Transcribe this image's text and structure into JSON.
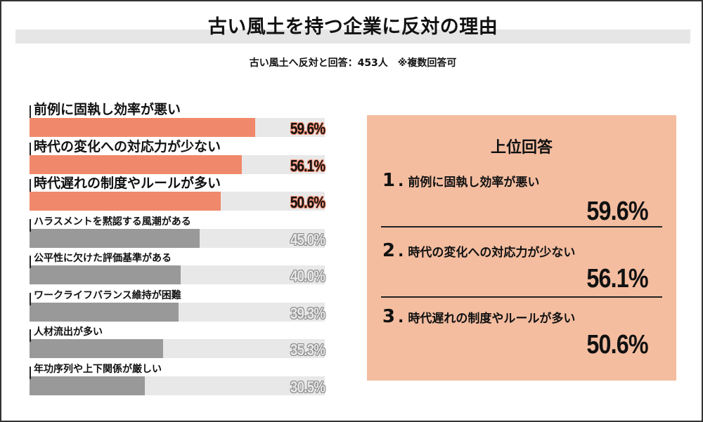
{
  "header": {
    "title": "古い風土を持つ企業に反対の理由",
    "subtitle": "古い風土へ反対と回答：453人　※複数回答可"
  },
  "colors": {
    "highlight_bar": "#f0896b",
    "other_bar": "#999999",
    "track": "#e8e8e8",
    "panel_bg": "#f4bda0",
    "title_band": "#e6e6e6"
  },
  "bars": [
    {
      "label": "前例に固執し効率が悪い",
      "value": 59.6,
      "display": "59.6%",
      "highlight": true
    },
    {
      "label": "時代の変化への対応力が少ない",
      "value": 56.1,
      "display": "56.1%",
      "highlight": true
    },
    {
      "label": "時代遅れの制度やルールが多い",
      "value": 50.6,
      "display": "50.6%",
      "highlight": true
    },
    {
      "label": "ハラスメントを黙認する風潮がある",
      "value": 45.0,
      "display": "45.0%",
      "highlight": false
    },
    {
      "label": "公平性に欠けた評価基準がある",
      "value": 40.0,
      "display": "40.0%",
      "highlight": false
    },
    {
      "label": "ワークライフバランス維持が困難",
      "value": 39.3,
      "display": "39.3%",
      "highlight": false
    },
    {
      "label": "人材流出が多い",
      "value": 35.3,
      "display": "35.3%",
      "highlight": false
    },
    {
      "label": "年功序列や上下関係が厳しい",
      "value": 30.5,
      "display": "30.5%",
      "highlight": false
    }
  ],
  "top_panel": {
    "title": "上位回答",
    "items": [
      {
        "rank": "1",
        "label": "前例に固執し効率が悪い",
        "value": "59.6%"
      },
      {
        "rank": "2",
        "label": "時代の変化への対応力が少ない",
        "value": "56.1%"
      },
      {
        "rank": "3",
        "label": "時代遅れの制度やルールが多い",
        "value": "50.6%"
      }
    ]
  },
  "chart_data": {
    "type": "bar",
    "orientation": "horizontal",
    "title": "古い風土を持つ企業に反対の理由",
    "subtitle": "古い風土へ反対と回答：453人　※複数回答可",
    "categories": [
      "前例に固執し効率が悪い",
      "時代の変化への対応力が少ない",
      "時代遅れの制度やルールが多い",
      "ハラスメントを黙認する風潮がある",
      "公平性に欠けた評価基準がある",
      "ワークライフバランス維持が困難",
      "人材流出が多い",
      "年功序列や上下関係が厳しい"
    ],
    "values": [
      59.6,
      56.1,
      50.6,
      45.0,
      40.0,
      39.3,
      35.3,
      30.5
    ],
    "unit": "%",
    "xlabel": "",
    "ylabel": "",
    "xlim": [
      0,
      78
    ],
    "grid": false,
    "legend": null,
    "highlighted": [
      "前例に固執し効率が悪い",
      "時代の変化への対応力が少ない",
      "時代遅れの制度やルールが多い"
    ],
    "annotations": [
      "上位回答: 1. 前例に固執し効率が悪い 59.6%",
      "2. 時代の変化への対応力が少ない 56.1%",
      "3. 時代遅れの制度やルールが多い 50.6%"
    ]
  }
}
